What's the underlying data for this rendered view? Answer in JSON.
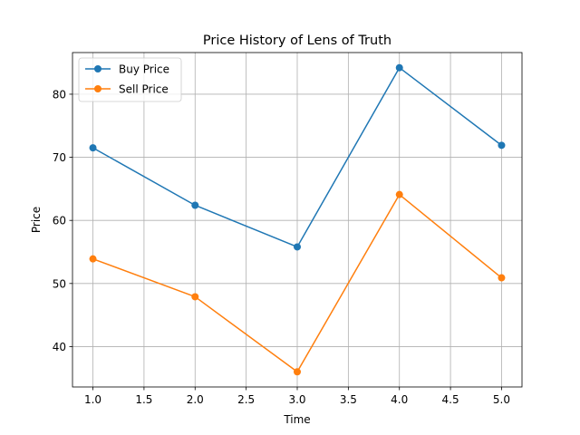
{
  "chart_data": {
    "type": "line",
    "title": "Price History of Lens of Truth",
    "xlabel": "Time",
    "ylabel": "Price",
    "x": [
      1,
      2,
      3,
      4,
      5
    ],
    "xlim": [
      0.8,
      5.2
    ],
    "ylim": [
      33.6,
      86.6
    ],
    "xticks": [
      1.0,
      1.5,
      2.0,
      2.5,
      3.0,
      3.5,
      4.0,
      4.5,
      5.0
    ],
    "xtick_labels": [
      "1.0",
      "1.5",
      "2.0",
      "2.5",
      "3.0",
      "3.5",
      "4.0",
      "4.5",
      "5.0"
    ],
    "yticks": [
      40,
      50,
      60,
      70,
      80
    ],
    "ytick_labels": [
      "40",
      "50",
      "60",
      "70",
      "80"
    ],
    "grid": true,
    "legend": "top-left",
    "series": [
      {
        "name": "Buy Price",
        "color": "#1f77b4",
        "values": [
          71.5,
          62.4,
          55.8,
          84.2,
          71.9
        ]
      },
      {
        "name": "Sell Price",
        "color": "#ff7f0e",
        "values": [
          53.9,
          47.9,
          36.0,
          64.1,
          50.9
        ]
      }
    ]
  }
}
